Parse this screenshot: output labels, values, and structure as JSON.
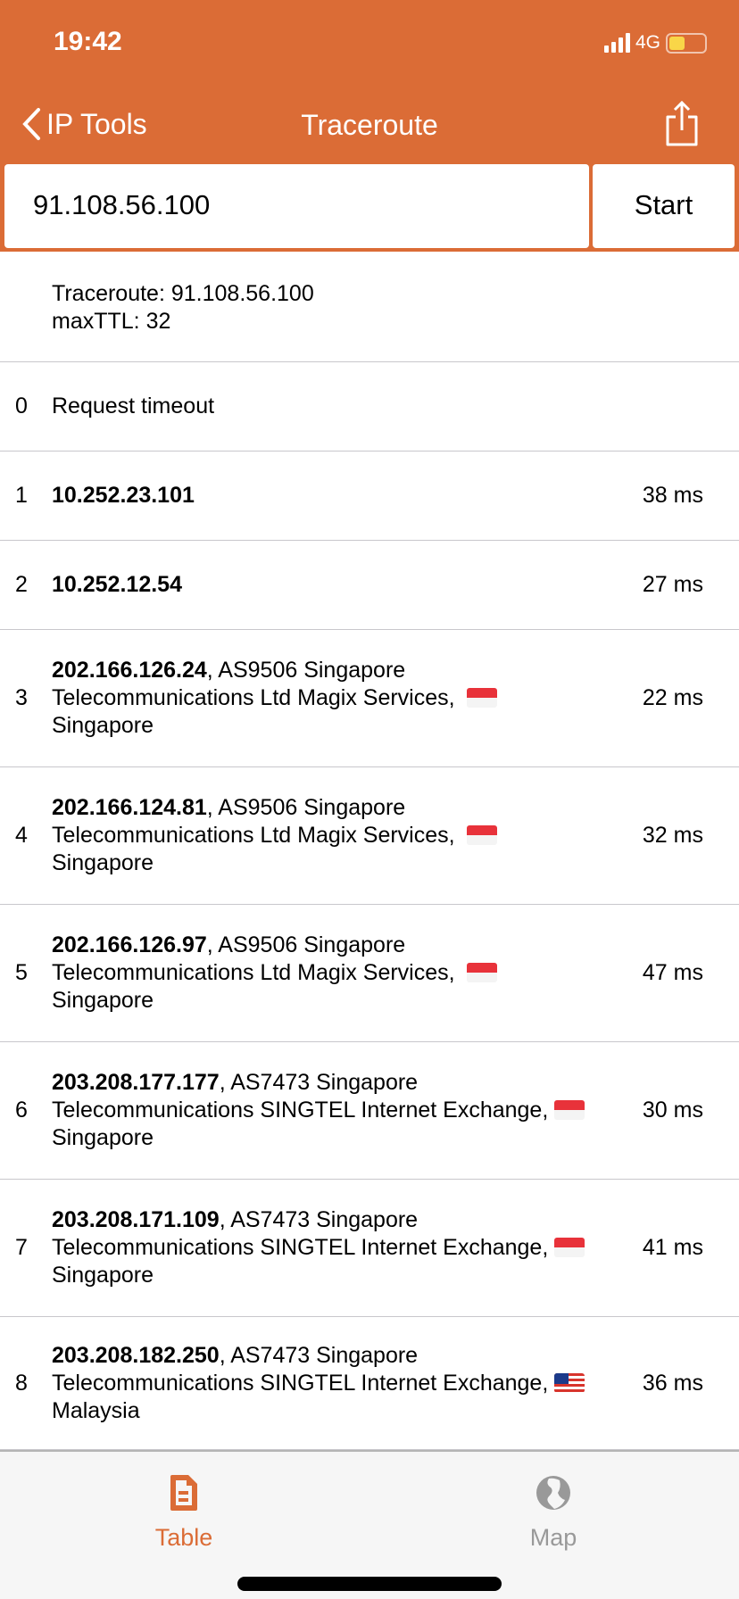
{
  "status_bar": {
    "time": "19:42",
    "network": "4G",
    "battery_level": 0.45
  },
  "nav": {
    "back_label": "IP Tools",
    "title": "Traceroute"
  },
  "search": {
    "value": "91.108.56.100",
    "start_label": "Start"
  },
  "info": {
    "line1": "Traceroute: 91.108.56.100",
    "line2": "maxTTL: 32"
  },
  "hops": [
    {
      "n": "0",
      "ip": "",
      "text": "Request timeout",
      "ms": ""
    },
    {
      "n": "1",
      "ip": "10.252.23.101",
      "text": "",
      "ms": "38 ms"
    },
    {
      "n": "2",
      "ip": "10.252.12.54",
      "text": "",
      "ms": "27 ms"
    },
    {
      "n": "3",
      "ip": "202.166.126.24",
      "text": ", AS9506 Singapore Telecommunications Ltd Magix Services, ",
      "flag": "sg",
      "country": "Singapore",
      "ms": "22 ms"
    },
    {
      "n": "4",
      "ip": "202.166.124.81",
      "text": ", AS9506 Singapore Telecommunications Ltd Magix Services, ",
      "flag": "sg",
      "country": "Singapore",
      "ms": "32 ms"
    },
    {
      "n": "5",
      "ip": "202.166.126.97",
      "text": ", AS9506 Singapore Telecommunications Ltd Magix Services, ",
      "flag": "sg",
      "country": "Singapore",
      "ms": "47 ms"
    },
    {
      "n": "6",
      "ip": "203.208.177.177",
      "text": ", AS7473 Singapore Telecommunications SINGTEL Internet Exchange, ",
      "flag": "sg",
      "country": "Singapore",
      "ms": "30 ms"
    },
    {
      "n": "7",
      "ip": "203.208.171.109",
      "text": ", AS7473 Singapore Telecommunications SINGTEL Internet Exchange, ",
      "flag": "sg",
      "country": "Singapore",
      "ms": "41 ms"
    },
    {
      "n": "8",
      "ip": "203.208.182.250",
      "text": ", AS7473 Singapore Telecommunications SINGTEL Internet Exchange, ",
      "flag": "my",
      "country": "Malaysia",
      "ms": "36 ms"
    }
  ],
  "tabs": [
    {
      "label": "Table",
      "icon": "document-icon",
      "active": true
    },
    {
      "label": "Map",
      "icon": "globe-icon",
      "active": false
    }
  ],
  "colors": {
    "accent": "#DB6C36",
    "inactive": "#999999"
  }
}
